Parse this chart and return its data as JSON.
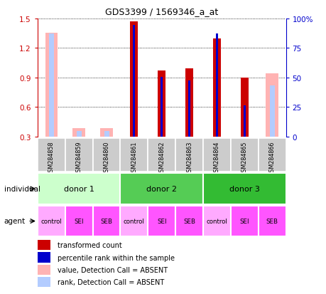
{
  "title": "GDS3399 / 1569346_a_at",
  "samples": [
    "GSM284858",
    "GSM284859",
    "GSM284860",
    "GSM284861",
    "GSM284862",
    "GSM284863",
    "GSM284864",
    "GSM284865",
    "GSM284866"
  ],
  "red_bars": [
    null,
    null,
    null,
    1.47,
    0.97,
    0.99,
    1.3,
    0.9,
    null
  ],
  "blue_bars": [
    null,
    null,
    null,
    1.435,
    0.905,
    0.872,
    1.345,
    0.618,
    null
  ],
  "pink_bars": [
    1.355,
    0.385,
    0.385,
    null,
    null,
    null,
    null,
    null,
    0.945
  ],
  "lightblue_bars": [
    1.345,
    0.355,
    0.355,
    null,
    null,
    null,
    null,
    null,
    0.815
  ],
  "ylim_left": [
    0.3,
    1.5
  ],
  "ylim_right": [
    0,
    100
  ],
  "yticks_left": [
    0.3,
    0.6,
    0.9,
    1.2,
    1.5
  ],
  "yticks_right": [
    0,
    25,
    50,
    75,
    100
  ],
  "ytick_labels_right": [
    "0",
    "25",
    "50",
    "75",
    "100%"
  ],
  "left_color": "#cc0000",
  "right_color": "#0000cc",
  "red_color": "#cc0000",
  "blue_color": "#0000cc",
  "pink_color": "#ffb3b3",
  "lightblue_color": "#b3ccff",
  "red_bar_width": 0.28,
  "blue_bar_width": 0.08,
  "pink_bar_width": 0.45,
  "lightblue_bar_width": 0.18,
  "donors": [
    {
      "label": "donor 1",
      "start": 0,
      "end": 3,
      "color": "#ccffcc"
    },
    {
      "label": "donor 2",
      "start": 3,
      "end": 6,
      "color": "#55cc55"
    },
    {
      "label": "donor 3",
      "start": 6,
      "end": 9,
      "color": "#33bb33"
    }
  ],
  "agents": [
    "control",
    "SEI",
    "SEB",
    "control",
    "SEI",
    "SEB",
    "control",
    "SEI",
    "SEB"
  ],
  "agent_colors": [
    "#ffaaff",
    "#ff55ff",
    "#ff55ff",
    "#ffaaff",
    "#ff55ff",
    "#ff55ff",
    "#ffaaff",
    "#ff55ff",
    "#ff55ff"
  ],
  "individual_label": "individual",
  "agent_label": "agent",
  "legend_items": [
    {
      "label": "transformed count",
      "color": "#cc0000"
    },
    {
      "label": "percentile rank within the sample",
      "color": "#0000cc"
    },
    {
      "label": "value, Detection Call = ABSENT",
      "color": "#ffb3b3"
    },
    {
      "label": "rank, Detection Call = ABSENT",
      "color": "#b3ccff"
    }
  ],
  "background_color": "#ffffff",
  "sample_label_bg": "#cccccc"
}
